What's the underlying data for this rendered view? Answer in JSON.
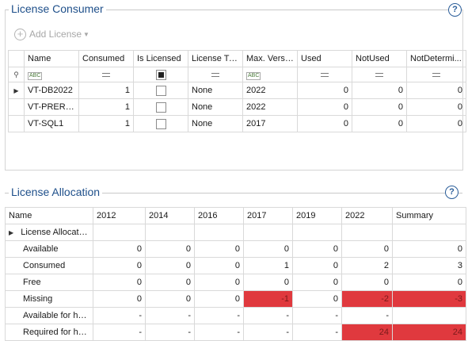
{
  "consumer": {
    "title": "License Consumer",
    "help_glyph": "?",
    "add_label": "Add License",
    "columns": [
      "Name",
      "Consumed",
      "Is Licensed",
      "License Ty...",
      "Max. Versi...",
      "Used",
      "NotUsed",
      "NotDetermi..."
    ],
    "rows": [
      {
        "name": "VT-DB2022",
        "consumed": "1",
        "license_type": "None",
        "max_version": "2022",
        "used": "0",
        "not_used": "0",
        "not_determined": "0"
      },
      {
        "name": "VT-PRERE...",
        "consumed": "1",
        "license_type": "None",
        "max_version": "2022",
        "used": "0",
        "not_used": "0",
        "not_determined": "0"
      },
      {
        "name": "VT-SQL1",
        "consumed": "1",
        "license_type": "None",
        "max_version": "2017",
        "used": "0",
        "not_used": "0",
        "not_determined": "0"
      }
    ]
  },
  "allocation": {
    "title": "License Allocation",
    "help_glyph": "?",
    "columns": [
      "Name",
      "2012",
      "2014",
      "2016",
      "2017",
      "2019",
      "2022",
      "Summary"
    ],
    "group_label": "License Allocation",
    "rows": [
      {
        "name": "Available",
        "values": [
          "0",
          "0",
          "0",
          "0",
          "0",
          "0",
          "0"
        ]
      },
      {
        "name": "Consumed",
        "values": [
          "0",
          "0",
          "0",
          "1",
          "0",
          "2",
          "3"
        ]
      },
      {
        "name": "Free",
        "values": [
          "0",
          "0",
          "0",
          "0",
          "0",
          "0",
          "0"
        ]
      },
      {
        "name": "Missing",
        "values": [
          "0",
          "0",
          "0",
          "-1",
          "0",
          "-2",
          "-3"
        ]
      },
      {
        "name": "Available for host",
        "values": [
          "-",
          "-",
          "-",
          "-",
          "-",
          "-",
          ""
        ]
      },
      {
        "name": "Required for host",
        "values": [
          "-",
          "-",
          "-",
          "-",
          "-",
          "24",
          "24"
        ]
      }
    ]
  },
  "colors": {
    "title": "#1e4f8a",
    "highlight_red": "#e0393e"
  }
}
